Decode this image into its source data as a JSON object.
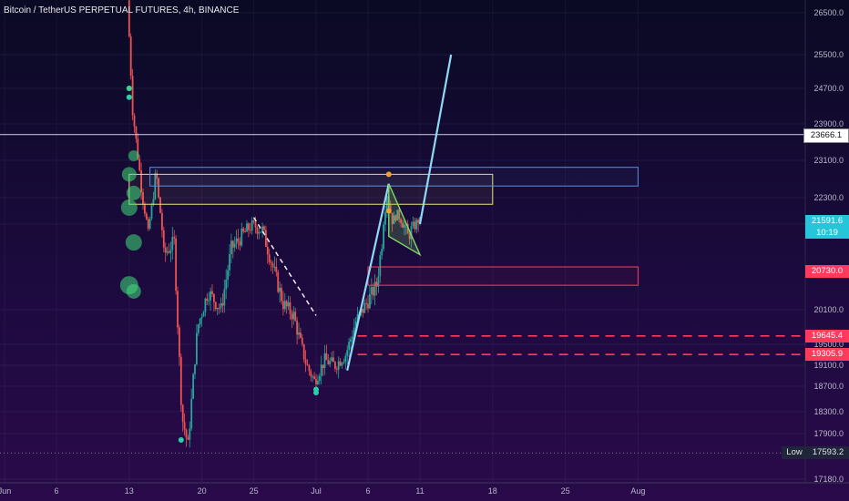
{
  "title": "Bitcoin / TetherUS PERPETUAL FUTURES, 4h, BINANCE",
  "colors": {
    "up": "#26a69a",
    "down": "#ef5350",
    "zone_yellow": "#e8e27a",
    "zone_blue": "#5b8fe0",
    "zone_red": "#ff3b5c",
    "trend_line": "#8fd9f5",
    "line_white": "#d8d8f0",
    "wedge": "#7fd86a"
  },
  "chart_data": {
    "type": "candlestick",
    "symbol": "Bitcoin / TetherUS PERPETUAL FUTURES",
    "timeframe": "4h",
    "exchange": "BINANCE",
    "x_ticks": [
      "Jun",
      "6",
      "13",
      "20",
      "25",
      "Jul",
      "6",
      "11",
      "18",
      "25",
      "Aug"
    ],
    "y_ticks": [
      26500.0,
      25500.0,
      24700.0,
      23900.0,
      23100.0,
      22300.0,
      21500.0,
      20100.0,
      19500.0,
      19100.0,
      18700.0,
      18300.0,
      17900.0,
      17180.0
    ],
    "price_labels": [
      {
        "text": "23666.1",
        "value": 23666.1,
        "style": "white"
      },
      {
        "text": "21591.6",
        "sub": "10:19",
        "value": 21591.6,
        "style": "current"
      },
      {
        "text": "20730.0",
        "value": 20730.0,
        "style": "red"
      },
      {
        "text": "19645.4",
        "value": 19645.4,
        "style": "red"
      },
      {
        "text": "19305.9",
        "value": 19305.9,
        "style": "red"
      }
    ],
    "low_label": {
      "label": "Low",
      "value": "17593.2"
    },
    "horizontal_lines": [
      23666.1
    ],
    "zones": [
      {
        "name": "yellow-zone",
        "from_date": "2022-06-13",
        "to_date": "2022-07-18",
        "top": 22800,
        "bottom": 22100
      },
      {
        "name": "blue-zone",
        "from_date": "2022-06-15",
        "to_date": "2022-08-01",
        "top": 22950,
        "bottom": 22550
      },
      {
        "name": "red-zone",
        "from_date": "2022-07-06",
        "to_date": "2022-08-01",
        "top": 20800,
        "bottom": 20500
      }
    ],
    "dashed_levels": [
      19645.4,
      19305.9
    ],
    "trendlines": [
      {
        "points": [
          [
            "2022-07-04",
            19000
          ],
          [
            "2022-07-08",
            22600
          ]
        ]
      },
      {
        "points": [
          [
            "2022-07-11",
            21500
          ],
          [
            "2022-07-14",
            25500
          ]
        ]
      }
    ],
    "dashed_trend": [
      [
        "2022-06-25",
        21700
      ],
      [
        "2022-07-01",
        20000
      ]
    ],
    "wedge": [
      [
        "2022-07-08",
        22600
      ],
      [
        "2022-07-08",
        21300
      ],
      [
        "2022-07-11",
        21000
      ]
    ],
    "markers_teal": [
      [
        "2022-06-13",
        24700
      ],
      [
        "2022-06-13",
        24500
      ],
      [
        "2022-06-18",
        17800
      ],
      [
        "2022-07-01",
        18650
      ],
      [
        "2022-07-01",
        18600
      ]
    ],
    "markers_orange": [
      [
        "2022-07-08",
        22800
      ],
      [
        "2022-07-08",
        21900
      ]
    ]
  }
}
